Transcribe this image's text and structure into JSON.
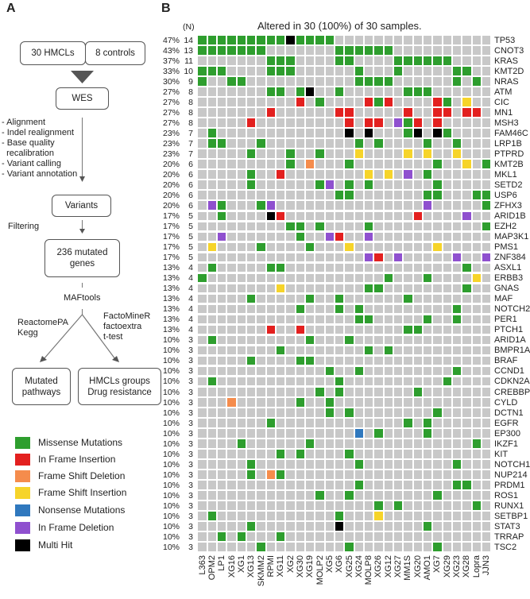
{
  "panel_a": {
    "letter": "A",
    "boxes": {
      "hmcls": "30 HMCLs",
      "controls": "8 controls",
      "wes": "WES",
      "variants": "Variants",
      "mutated_genes": "236 mutated genes",
      "mutated_pathways": "Mutated pathways",
      "hmcls_groups": "HMCLs groups Drug resistance"
    },
    "pipeline_steps": [
      "- Alignment",
      "- Indel realignment",
      "- Base quality",
      "  recalibration",
      "- Variant calling",
      "- Variant annotation"
    ],
    "filtering": "Filtering",
    "maftools": "MAFtools",
    "left_tools": [
      "ReactomePA",
      "Kegg"
    ],
    "right_tools": [
      "FactoMineR",
      "factoextra",
      "t-test"
    ]
  },
  "legend": [
    {
      "code": "M",
      "label": "Missense Mutations",
      "color": "#2e9e2e"
    },
    {
      "code": "I",
      "label": "In Frame Insertion",
      "color": "#e3201f"
    },
    {
      "code": "D",
      "label": "Frame Shift Deletion",
      "color": "#f58c4c"
    },
    {
      "code": "F",
      "label": "Frame Shift Insertion",
      "color": "#f6d42a"
    },
    {
      "code": "N",
      "label": "Nonsense Mutations",
      "color": "#2f78be"
    },
    {
      "code": "E",
      "label": "In Frame Deletion",
      "color": "#8f50cf"
    },
    {
      "code": "X",
      "label": "Multi Hit",
      "color": "#000000"
    }
  ],
  "chart_data": {
    "type": "heatmap",
    "panel_letter": "B",
    "title": "Altered in 30 (100%) of 30 samples.",
    "count_header": "(N)",
    "background_color": "#c8c8c8",
    "empty_code": ".",
    "samples": [
      "L363",
      "OPM2",
      "LP1",
      "XG16",
      "XG1",
      "XG13",
      "SKMM2",
      "RPMI",
      "XG11",
      "XG2",
      "XG30",
      "XG19",
      "MOLP2",
      "XG5",
      "XG6",
      "XG25",
      "XG24",
      "MOLP8",
      "XG26",
      "XG12",
      "XG27",
      "MM1S",
      "XG20",
      "AMO1",
      "XG7",
      "XG29",
      "XG23",
      "XG28",
      "Lopra",
      "JJN3"
    ],
    "genes": [
      {
        "gene": "TP53",
        "pct": "47%",
        "n": "14",
        "cells": "MMMMMMMMMXMMMM................"
      },
      {
        "gene": "CNOT3",
        "pct": "43%",
        "n": "13",
        "cells": "MMMMMMM.......MMMMMM.........."
      },
      {
        "gene": "KRAS",
        "pct": "37%",
        "n": "11",
        "cells": ".......MMM....MM....MMMMMM...."
      },
      {
        "gene": "KMT2D",
        "pct": "33%",
        "n": "10",
        "cells": "MMM....MMM......M...M.....MM.."
      },
      {
        "gene": "NRAS",
        "pct": "30%",
        "n": "9",
        "cells": "M..MM...........MMMM......M.M."
      },
      {
        "gene": "ATM",
        "pct": "27%",
        "n": "8",
        "cells": ".......MM.MX..M......MMM......"
      },
      {
        "gene": "CIC",
        "pct": "27%",
        "n": "8",
        "cells": "..........I.M....IMI....IM.F.."
      },
      {
        "gene": "MN1",
        "pct": "27%",
        "n": "8",
        "cells": ".......I......II.....I..II.II."
      },
      {
        "gene": "MSH3",
        "pct": "27%",
        "n": "8",
        "cells": ".....I.........I.II.EMI.I....."
      },
      {
        "gene": "FAM46C",
        "pct": "23%",
        "n": "7",
        "cells": ".M.............X.X...MX.XM...."
      },
      {
        "gene": "LRP1B",
        "pct": "23%",
        "n": "7",
        "cells": ".MM...M.........M.M....M..M..."
      },
      {
        "gene": "PTPRD",
        "pct": "23%",
        "n": "7",
        "cells": ".....M...M..M...F....F.F..F..."
      },
      {
        "gene": "KMT2B",
        "pct": "20%",
        "n": "6",
        "cells": ".........M.D...M........M..F.M"
      },
      {
        "gene": "MKL1",
        "pct": "20%",
        "n": "6",
        "cells": ".....M..I........F.F.E.M......"
      },
      {
        "gene": "SETD2",
        "pct": "20%",
        "n": "6",
        "cells": ".....M......ME.M.M......M....."
      },
      {
        "gene": "USP6",
        "pct": "20%",
        "n": "6",
        "cells": "..............MM.......MM...MM"
      },
      {
        "gene": "ZFHX3",
        "pct": "20%",
        "n": "6",
        "cells": ".EM...ME...............E.....M"
      },
      {
        "gene": "ARID1B",
        "pct": "17%",
        "n": "5",
        "cells": "..M....XI.............I....E.."
      },
      {
        "gene": "EZH2",
        "pct": "17%",
        "n": "5",
        "cells": ".........MM.M....M...........M"
      },
      {
        "gene": "MAP3K1",
        "pct": "17%",
        "n": "5",
        "cells": "..E.......M..EI..E............"
      },
      {
        "gene": "PMS1",
        "pct": "17%",
        "n": "5",
        "cells": ".F....M....M...F........F....."
      },
      {
        "gene": "ZNF384",
        "pct": "17%",
        "n": "5",
        "cells": ".................EI.E.....E..E"
      },
      {
        "gene": "ASXL1",
        "pct": "13%",
        "n": "4",
        "cells": ".M.....MM..................M.."
      },
      {
        "gene": "ERBB3",
        "pct": "13%",
        "n": "4",
        "cells": "M..................M...M....F."
      },
      {
        "gene": "GNAS",
        "pct": "13%",
        "n": "4",
        "cells": "........F........MM........M.."
      },
      {
        "gene": "MAF",
        "pct": "13%",
        "n": "4",
        "cells": ".....M.....M..M......M........"
      },
      {
        "gene": "NOTCH2",
        "pct": "13%",
        "n": "4",
        "cells": "..........M...M.M.........M..."
      },
      {
        "gene": "PER1",
        "pct": "13%",
        "n": "4",
        "cells": "................MM.....M..M..."
      },
      {
        "gene": "PTCH1",
        "pct": "13%",
        "n": "4",
        "cells": ".......I..I..........MM......."
      },
      {
        "gene": "ARID1A",
        "pct": "10%",
        "n": "3",
        "cells": ".M.........M...M.............."
      },
      {
        "gene": "BMPR1A",
        "pct": "10%",
        "n": "3",
        "cells": "........M........M.M.........."
      },
      {
        "gene": "BRAF",
        "pct": "10%",
        "n": "3",
        "cells": ".....M....MM.................."
      },
      {
        "gene": "CCND1",
        "pct": "10%",
        "n": "3",
        "cells": ".............M..M.........M..."
      },
      {
        "gene": "CDKN2A",
        "pct": "10%",
        "n": "3",
        "cells": ".M............M..........M...."
      },
      {
        "gene": "CREBBP",
        "pct": "10%",
        "n": "3",
        "cells": "............M.M.......M......."
      },
      {
        "gene": "CYLD",
        "pct": "10%",
        "n": "3",
        "cells": "...D......M..M................"
      },
      {
        "gene": "DCTN1",
        "pct": "10%",
        "n": "3",
        "cells": ".............M.M........M....."
      },
      {
        "gene": "EGFR",
        "pct": "10%",
        "n": "3",
        "cells": ".......M.............M.M......"
      },
      {
        "gene": "EP300",
        "pct": "10%",
        "n": "3",
        "cells": "................N.M....M......"
      },
      {
        "gene": "IKZF1",
        "pct": "10%",
        "n": "3",
        "cells": "....M......M................M."
      },
      {
        "gene": "KIT",
        "pct": "10%",
        "n": "3",
        "cells": "........M.M....M.............."
      },
      {
        "gene": "NOTCH1",
        "pct": "10%",
        "n": "3",
        "cells": ".....M..........M.........M..."
      },
      {
        "gene": "NUP214",
        "pct": "10%",
        "n": "3",
        "cells": ".....M.DM....................."
      },
      {
        "gene": "PRDM1",
        "pct": "10%",
        "n": "3",
        "cells": "................M.........MM.."
      },
      {
        "gene": "ROS1",
        "pct": "10%",
        "n": "3",
        "cells": "............M..M........M....."
      },
      {
        "gene": "RUNX1",
        "pct": "10%",
        "n": "3",
        "cells": "..................M.M.......M."
      },
      {
        "gene": "SETBP1",
        "pct": "10%",
        "n": "3",
        "cells": ".M............M...F..........."
      },
      {
        "gene": "STAT3",
        "pct": "10%",
        "n": "3",
        "cells": ".....M........X........M......"
      },
      {
        "gene": "TRRAP",
        "pct": "10%",
        "n": "3",
        "cells": "..M.M...M....................."
      },
      {
        "gene": "TSC2",
        "pct": "10%",
        "n": "3",
        "cells": "......M........M........M....."
      }
    ]
  }
}
